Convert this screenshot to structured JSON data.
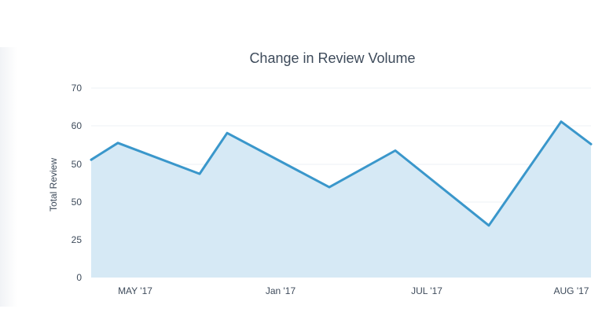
{
  "chart_data": {
    "type": "area",
    "title": "Change in Review Volume",
    "ylabel": "Total Review",
    "xlabel": "",
    "y_ticks": [
      "0",
      "25",
      "50",
      "50",
      "60",
      "70"
    ],
    "x_ticks": [
      "MAY '17",
      "Jan '17",
      "JUL '17",
      "AUG '17"
    ],
    "grid": true,
    "legend": "none",
    "line_color": "#3a97cb",
    "fill_color": "#d6e9f5",
    "series": [
      {
        "values": [
          51.2,
          55.6,
          47.5,
          58.2,
          44.0,
          53.6,
          34.5,
          61.2,
          55.3
        ]
      }
    ]
  }
}
